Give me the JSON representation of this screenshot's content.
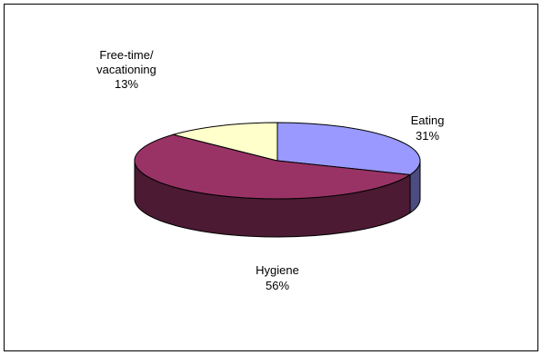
{
  "chart_data": {
    "type": "pie",
    "title": "",
    "slices": [
      {
        "label": "Eating",
        "value": 31,
        "value_label": "31%",
        "color": "#9999ff",
        "side_color": "#4c4c80"
      },
      {
        "label": "Hygiene",
        "value": 56,
        "value_label": "56%",
        "color": "#993366",
        "side_color": "#4c1a33"
      },
      {
        "label": "Free-time/\nvacationing",
        "value": 13,
        "value_label": "13%",
        "color": "#ffffcc",
        "side_color": "#808066"
      }
    ],
    "style": "3d",
    "legend": "none",
    "data_labels": "outside"
  }
}
